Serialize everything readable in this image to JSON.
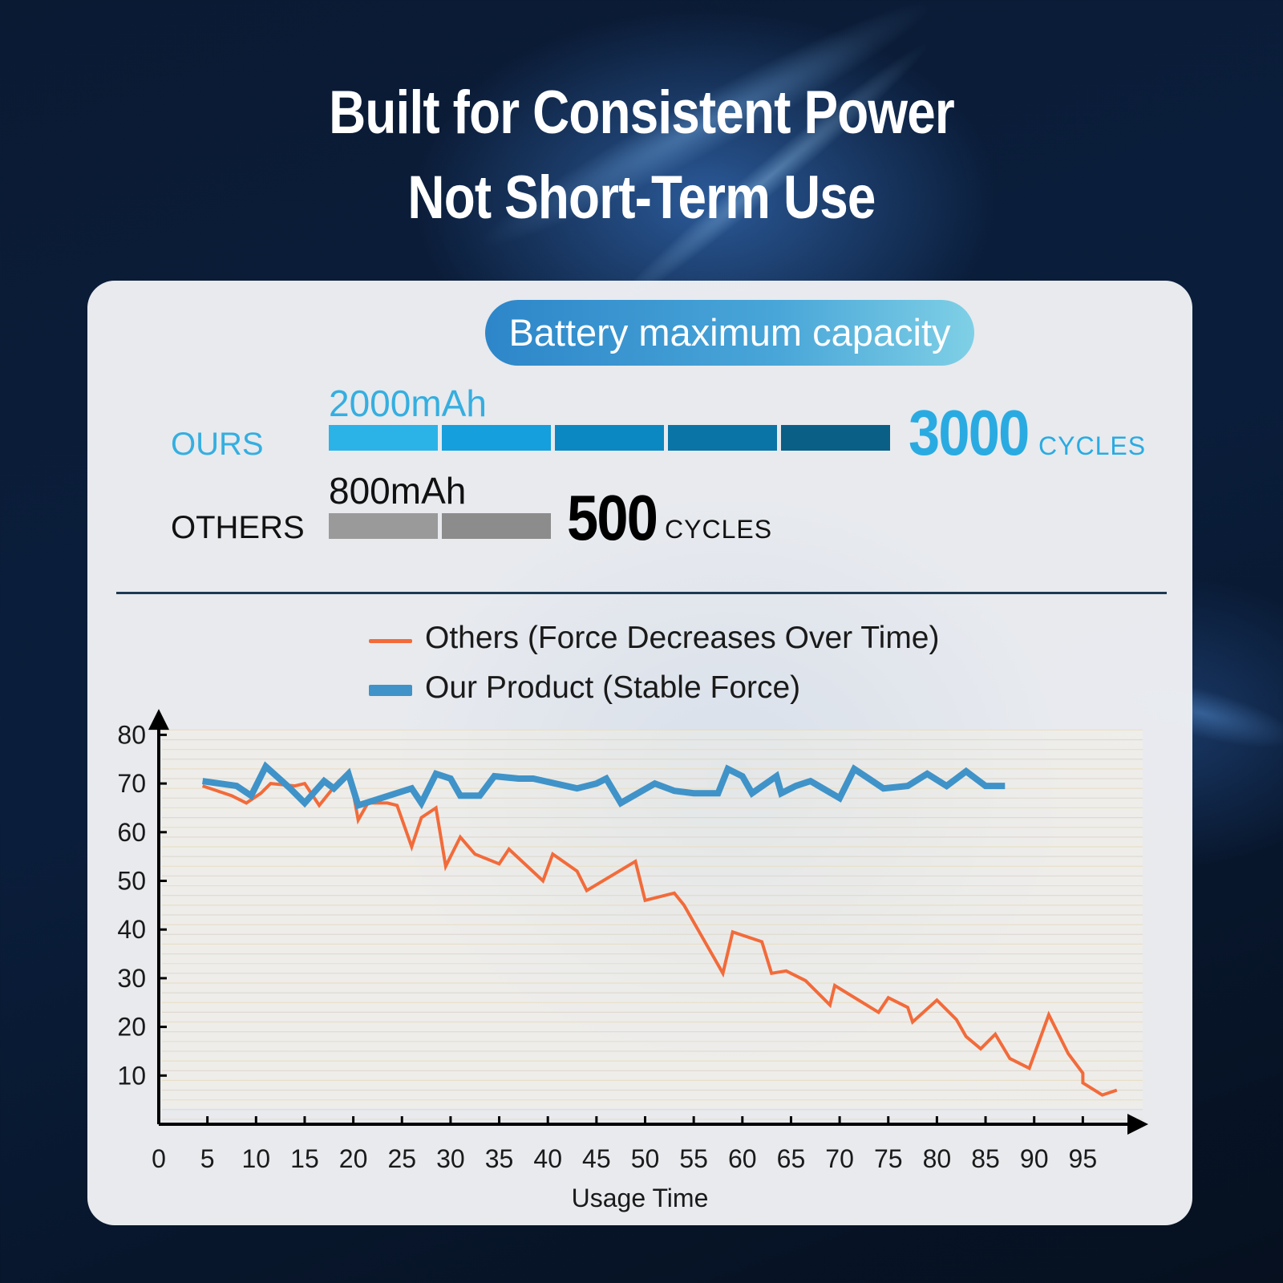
{
  "headline": {
    "line1": "Built for Consistent Power",
    "line2": "Not Short-Term Use"
  },
  "capacity": {
    "badge": "Battery maximum capacity",
    "ours": {
      "label": "OURS",
      "capacity": "2000mAh",
      "cycles": "3000",
      "cycles_unit": "CYCLES",
      "segments": 5,
      "colors": [
        "#2bb3e8",
        "#159fdc",
        "#0b88c2",
        "#0a74a6",
        "#0a5f87"
      ]
    },
    "others": {
      "label": "OTHERS",
      "capacity": "800mAh",
      "cycles": "500",
      "cycles_unit": "CYCLES",
      "segments": 2,
      "colors": [
        "#9a9a9a",
        "#8c8c8c"
      ]
    },
    "accent": "#29abe2"
  },
  "chart_data": {
    "type": "line",
    "xlabel": "Usage Time",
    "ylabel": "",
    "x_ticks": [
      0,
      5,
      10,
      15,
      20,
      25,
      30,
      35,
      40,
      45,
      50,
      55,
      60,
      65,
      70,
      75,
      80,
      85,
      90,
      95
    ],
    "y_ticks": [
      10,
      20,
      30,
      40,
      50,
      60,
      70,
      80
    ],
    "xlim": [
      0,
      97
    ],
    "ylim": [
      0,
      83
    ],
    "grid": true,
    "legend": "top-center",
    "series": [
      {
        "name": "Others (Force Decreases Over Time)",
        "color": "#f26b3a",
        "points": [
          [
            4.5,
            69.5
          ],
          [
            7.5,
            67.5
          ],
          [
            9,
            66
          ],
          [
            10.5,
            68
          ],
          [
            11.5,
            70
          ],
          [
            14,
            69.5
          ],
          [
            15,
            70
          ],
          [
            16.5,
            65.5
          ],
          [
            18.5,
            70.5
          ],
          [
            19.5,
            72
          ],
          [
            20,
            68
          ],
          [
            20.5,
            62.5
          ],
          [
            21.5,
            66
          ],
          [
            23.5,
            66
          ],
          [
            24.5,
            65.5
          ],
          [
            26,
            57
          ],
          [
            27,
            63
          ],
          [
            28.5,
            65
          ],
          [
            29.5,
            53
          ],
          [
            31,
            59
          ],
          [
            32.5,
            55.5
          ],
          [
            35,
            53.5
          ],
          [
            36,
            56.5
          ],
          [
            39.5,
            50
          ],
          [
            40.5,
            55.5
          ],
          [
            43,
            52
          ],
          [
            44,
            48
          ],
          [
            49,
            54
          ],
          [
            50,
            46
          ],
          [
            53,
            47.5
          ],
          [
            54,
            45
          ],
          [
            58,
            31
          ],
          [
            59,
            39.5
          ],
          [
            62,
            37.5
          ],
          [
            63,
            31
          ],
          [
            64.5,
            31.5
          ],
          [
            66.5,
            29.5
          ],
          [
            69,
            24.5
          ],
          [
            69.5,
            28.5
          ],
          [
            74,
            23
          ],
          [
            75,
            26
          ],
          [
            77,
            24
          ],
          [
            77.5,
            21
          ],
          [
            80,
            25.5
          ],
          [
            82,
            21.5
          ],
          [
            83,
            18
          ],
          [
            84.5,
            15.5
          ],
          [
            86,
            18.5
          ],
          [
            87.5,
            13.5
          ],
          [
            89.5,
            11.5
          ],
          [
            91.5,
            22.5
          ],
          [
            93.5,
            14.5
          ],
          [
            95,
            10.5
          ],
          [
            95,
            8.5
          ],
          [
            97,
            6
          ],
          [
            98.5,
            7
          ]
        ]
      },
      {
        "name": "Our Product (Stable Force)",
        "color": "#3f93c8",
        "points": [
          [
            4.5,
            70.5
          ],
          [
            8,
            69.5
          ],
          [
            9.5,
            67.5
          ],
          [
            11,
            73.5
          ],
          [
            13.5,
            69
          ],
          [
            15,
            66
          ],
          [
            17,
            70.5
          ],
          [
            18,
            69
          ],
          [
            19.5,
            72
          ],
          [
            20.5,
            65.5
          ],
          [
            26,
            69
          ],
          [
            27,
            66
          ],
          [
            28.5,
            72
          ],
          [
            30,
            71
          ],
          [
            31,
            67.5
          ],
          [
            33,
            67.5
          ],
          [
            34.5,
            71.5
          ],
          [
            37,
            71
          ],
          [
            38.5,
            71
          ],
          [
            43,
            69
          ],
          [
            45,
            70
          ],
          [
            46,
            71
          ],
          [
            47.5,
            66
          ],
          [
            51,
            70
          ],
          [
            53,
            68.5
          ],
          [
            55,
            68
          ],
          [
            57.5,
            68
          ],
          [
            58.5,
            73
          ],
          [
            60,
            71.5
          ],
          [
            61,
            68
          ],
          [
            63.5,
            71.5
          ],
          [
            64,
            68
          ],
          [
            65.5,
            69.5
          ],
          [
            67,
            70.5
          ],
          [
            70,
            67
          ],
          [
            71.5,
            73
          ],
          [
            73,
            71
          ],
          [
            74.5,
            69
          ],
          [
            77,
            69.5
          ],
          [
            79,
            72
          ],
          [
            81,
            69.5
          ],
          [
            83,
            72.5
          ],
          [
            85,
            69.5
          ],
          [
            87,
            69.5
          ]
        ]
      }
    ]
  }
}
